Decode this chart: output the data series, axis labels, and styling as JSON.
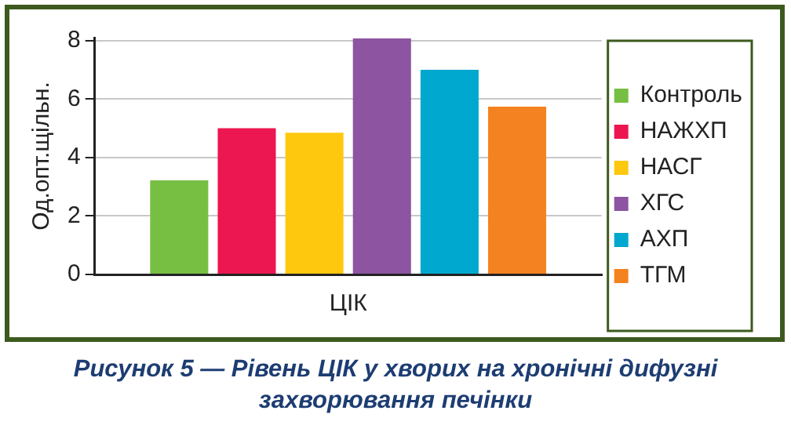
{
  "chart_data": {
    "type": "bar",
    "title": "Рисунок 5 — Рівень ЦІК у хворих на хронічні дифузні захворювання печінки",
    "ylabel": "Од.опт.щільн.",
    "categories": [
      "ЦІК"
    ],
    "series": [
      {
        "name": "Контроль",
        "color": "#76bf43",
        "values": [
          3.22
        ]
      },
      {
        "name": "НАЖХП",
        "color": "#ec1651",
        "values": [
          5.0
        ]
      },
      {
        "name": "НАСГ",
        "color": "#fec80e",
        "values": [
          4.85
        ]
      },
      {
        "name": "ХГС",
        "color": "#8c54a1",
        "values": [
          8.07
        ]
      },
      {
        "name": "АХП",
        "color": "#00a8cf",
        "values": [
          7.0
        ]
      },
      {
        "name": "ТГМ",
        "color": "#f58220",
        "values": [
          5.74
        ]
      }
    ],
    "ylim": [
      0,
      8.1
    ],
    "yticks": [
      0,
      2,
      4,
      6,
      8
    ],
    "grid": "y",
    "legend": "right"
  }
}
